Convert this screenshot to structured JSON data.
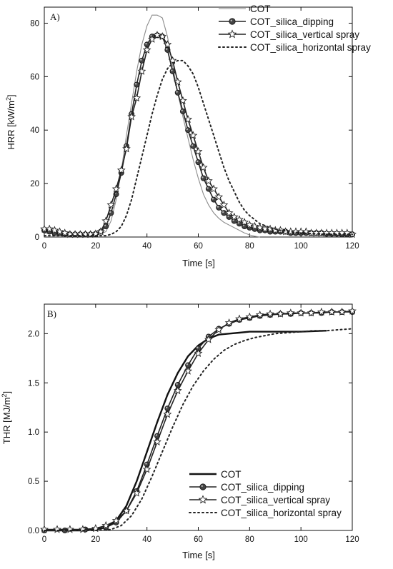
{
  "chart_data": [
    {
      "type": "line",
      "panel_label": "A)",
      "xlabel": "Time [s]",
      "ylabel_main": "HRR [kW/m",
      "ylabel_sup": "2",
      "ylabel_end": "]",
      "xlim": [
        0,
        120
      ],
      "ylim": [
        0,
        86
      ],
      "xticks": [
        0,
        20,
        40,
        60,
        80,
        100,
        120
      ],
      "yticks": [
        0,
        20,
        40,
        60,
        80
      ],
      "grid": false,
      "legend_position": "top-right",
      "series": [
        {
          "name": "COT",
          "style": "thin-gray",
          "color": "#8a8a8a",
          "x": [
            0,
            5,
            10,
            15,
            20,
            22,
            24,
            26,
            28,
            30,
            32,
            34,
            36,
            38,
            40,
            42,
            44,
            46,
            48,
            50,
            52,
            54,
            56,
            58,
            60,
            62,
            64,
            66,
            68,
            70,
            72,
            74,
            76,
            78,
            80,
            82,
            84
          ],
          "y": [
            1.5,
            1.2,
            1,
            1,
            1,
            1.2,
            2,
            6,
            14,
            25,
            38,
            50,
            62,
            72,
            79,
            83,
            83,
            82,
            75,
            64,
            54,
            45,
            37,
            29,
            22,
            16,
            12,
            9,
            7,
            5.5,
            4.5,
            3.5,
            2.5,
            1.5,
            0.8,
            0.3,
            0
          ]
        },
        {
          "name": "COT_silica_dipping",
          "style": "dots",
          "color": "#222222",
          "x": [
            0,
            2,
            4,
            6,
            8,
            10,
            12,
            14,
            16,
            18,
            20,
            22,
            24,
            26,
            28,
            30,
            32,
            34,
            36,
            38,
            40,
            42,
            44,
            46,
            48,
            50,
            52,
            54,
            56,
            58,
            60,
            62,
            64,
            66,
            68,
            70,
            72,
            74,
            76,
            78,
            80,
            82,
            84,
            86,
            88,
            90,
            92,
            94,
            96,
            98,
            100,
            102,
            104,
            106,
            108,
            110,
            112,
            114,
            116,
            118,
            120
          ],
          "y": [
            2.5,
            2,
            1.5,
            1.5,
            1.2,
            1,
            1,
            1,
            1,
            1,
            1.2,
            2,
            4,
            9,
            16,
            24,
            34,
            46,
            57,
            66,
            72,
            75,
            75.5,
            75,
            70,
            62,
            54,
            47,
            40,
            34,
            28,
            22,
            18,
            14,
            11,
            9,
            7.5,
            6,
            5,
            4,
            3.5,
            3,
            2.5,
            2.5,
            2,
            2,
            2,
            2,
            1.5,
            1.5,
            1.5,
            1.5,
            1.5,
            1.5,
            1.5,
            1.2,
            1.2,
            1.2,
            1,
            1,
            1
          ]
        },
        {
          "name": "COT_silica_vertical spray",
          "style": "stars",
          "color": "#222222",
          "x": [
            0,
            2,
            4,
            6,
            8,
            10,
            12,
            14,
            16,
            18,
            20,
            22,
            24,
            26,
            28,
            30,
            32,
            34,
            36,
            38,
            40,
            42,
            44,
            46,
            48,
            50,
            52,
            54,
            56,
            58,
            60,
            62,
            64,
            66,
            68,
            70,
            72,
            74,
            76,
            78,
            80,
            82,
            84,
            86,
            88,
            90,
            92,
            94,
            96,
            98,
            100,
            102,
            104,
            106,
            108,
            110,
            112,
            114,
            116,
            118,
            120
          ],
          "y": [
            3,
            3,
            2.5,
            2,
            1.5,
            1,
            1,
            1,
            1,
            1,
            1.2,
            2,
            6,
            12,
            18,
            25,
            33,
            45,
            52,
            62,
            70,
            74,
            75.5,
            75,
            72,
            66,
            58,
            51,
            44,
            38,
            32,
            26,
            21,
            18,
            15,
            12,
            9,
            7.5,
            6.5,
            5.5,
            4.5,
            4,
            3.5,
            3,
            3,
            2.5,
            2.5,
            2,
            2,
            2,
            2,
            2,
            1.5,
            1.5,
            1.5,
            1.5,
            1.5,
            1.5,
            1.5,
            1.5,
            1
          ]
        },
        {
          "name": "COT_silica_horizontal spray",
          "style": "dotted",
          "color": "#222222",
          "x": [
            0,
            10,
            20,
            24,
            26,
            28,
            30,
            32,
            34,
            36,
            38,
            40,
            42,
            44,
            46,
            48,
            50,
            52,
            54,
            56,
            58,
            60,
            62,
            64,
            66,
            68,
            70,
            72,
            74,
            76,
            78,
            80,
            84,
            88,
            92,
            96,
            100,
            110,
            120
          ],
          "y": [
            0.5,
            0.5,
            0.5,
            0.5,
            1,
            2,
            4,
            8,
            14,
            22,
            30,
            38,
            46,
            53,
            59,
            63,
            65,
            66,
            66,
            64,
            61,
            56,
            50,
            44,
            38,
            32,
            26,
            21,
            17,
            13,
            10,
            8,
            5,
            3.5,
            2.5,
            2,
            1.5,
            1,
            1
          ]
        }
      ]
    },
    {
      "type": "line",
      "panel_label": "B)",
      "xlabel": "Time [s]",
      "ylabel_main": "THR [MJ/m",
      "ylabel_sup": "2",
      "ylabel_end": "]",
      "xlim": [
        0,
        120
      ],
      "ylim": [
        0,
        2.3
      ],
      "xticks": [
        0,
        20,
        40,
        60,
        80,
        100,
        120
      ],
      "yticks": [
        0.0,
        0.5,
        1.0,
        1.5,
        2.0
      ],
      "ytick_labels": [
        "0.0",
        "0.5",
        "1.0",
        "1.5",
        "2.0"
      ],
      "grid": false,
      "legend_position": "bottom-right",
      "series": [
        {
          "name": "COT",
          "style": "thick",
          "color": "#111111",
          "x": [
            0,
            10,
            15,
            20,
            24,
            28,
            32,
            36,
            40,
            44,
            48,
            52,
            56,
            60,
            64,
            68,
            72,
            76,
            80,
            90,
            100,
            110
          ],
          "y": [
            0,
            0,
            0,
            0.01,
            0.03,
            0.1,
            0.25,
            0.5,
            0.8,
            1.1,
            1.38,
            1.6,
            1.77,
            1.88,
            1.95,
            1.99,
            2.0,
            2.01,
            2.02,
            2.02,
            2.02,
            2.03
          ]
        },
        {
          "name": "COT_silica_dipping",
          "style": "dots",
          "color": "#222222",
          "x": [
            0,
            8,
            16,
            24,
            28,
            32,
            36,
            40,
            44,
            48,
            52,
            56,
            60,
            64,
            68,
            72,
            76,
            80,
            84,
            88,
            92,
            96,
            100,
            104,
            108,
            112,
            116,
            120
          ],
          "y": [
            0,
            0,
            0.01,
            0.03,
            0.08,
            0.2,
            0.4,
            0.67,
            0.96,
            1.24,
            1.48,
            1.68,
            1.85,
            1.97,
            2.05,
            2.1,
            2.14,
            2.16,
            2.18,
            2.19,
            2.2,
            2.2,
            2.21,
            2.21,
            2.21,
            2.22,
            2.22,
            2.22
          ]
        },
        {
          "name": "COT_silica_vertical spray",
          "style": "stars",
          "color": "#222222",
          "x": [
            0,
            5,
            10,
            15,
            20,
            24,
            28,
            32,
            36,
            40,
            44,
            48,
            52,
            56,
            60,
            64,
            68,
            72,
            76,
            80,
            84,
            88,
            92,
            96,
            100,
            104,
            108,
            112,
            116,
            120
          ],
          "y": [
            0.01,
            0.01,
            0.01,
            0.01,
            0.02,
            0.05,
            0.1,
            0.2,
            0.38,
            0.62,
            0.9,
            1.18,
            1.42,
            1.62,
            1.8,
            1.94,
            2.04,
            2.11,
            2.15,
            2.17,
            2.19,
            2.2,
            2.2,
            2.21,
            2.21,
            2.21,
            2.22,
            2.22,
            2.22,
            2.23
          ]
        },
        {
          "name": "COT_silica_horizontal spray",
          "style": "dotted",
          "color": "#222222",
          "x": [
            0,
            10,
            20,
            26,
            30,
            34,
            38,
            42,
            46,
            50,
            54,
            58,
            62,
            66,
            70,
            74,
            78,
            82,
            86,
            90,
            95,
            100,
            105,
            110,
            115,
            120
          ],
          "y": [
            0,
            0,
            0,
            0.01,
            0.05,
            0.15,
            0.32,
            0.55,
            0.8,
            1.05,
            1.28,
            1.47,
            1.62,
            1.74,
            1.83,
            1.89,
            1.93,
            1.96,
            1.98,
            2.0,
            2.01,
            2.02,
            2.03,
            2.03,
            2.04,
            2.05
          ]
        }
      ]
    }
  ]
}
